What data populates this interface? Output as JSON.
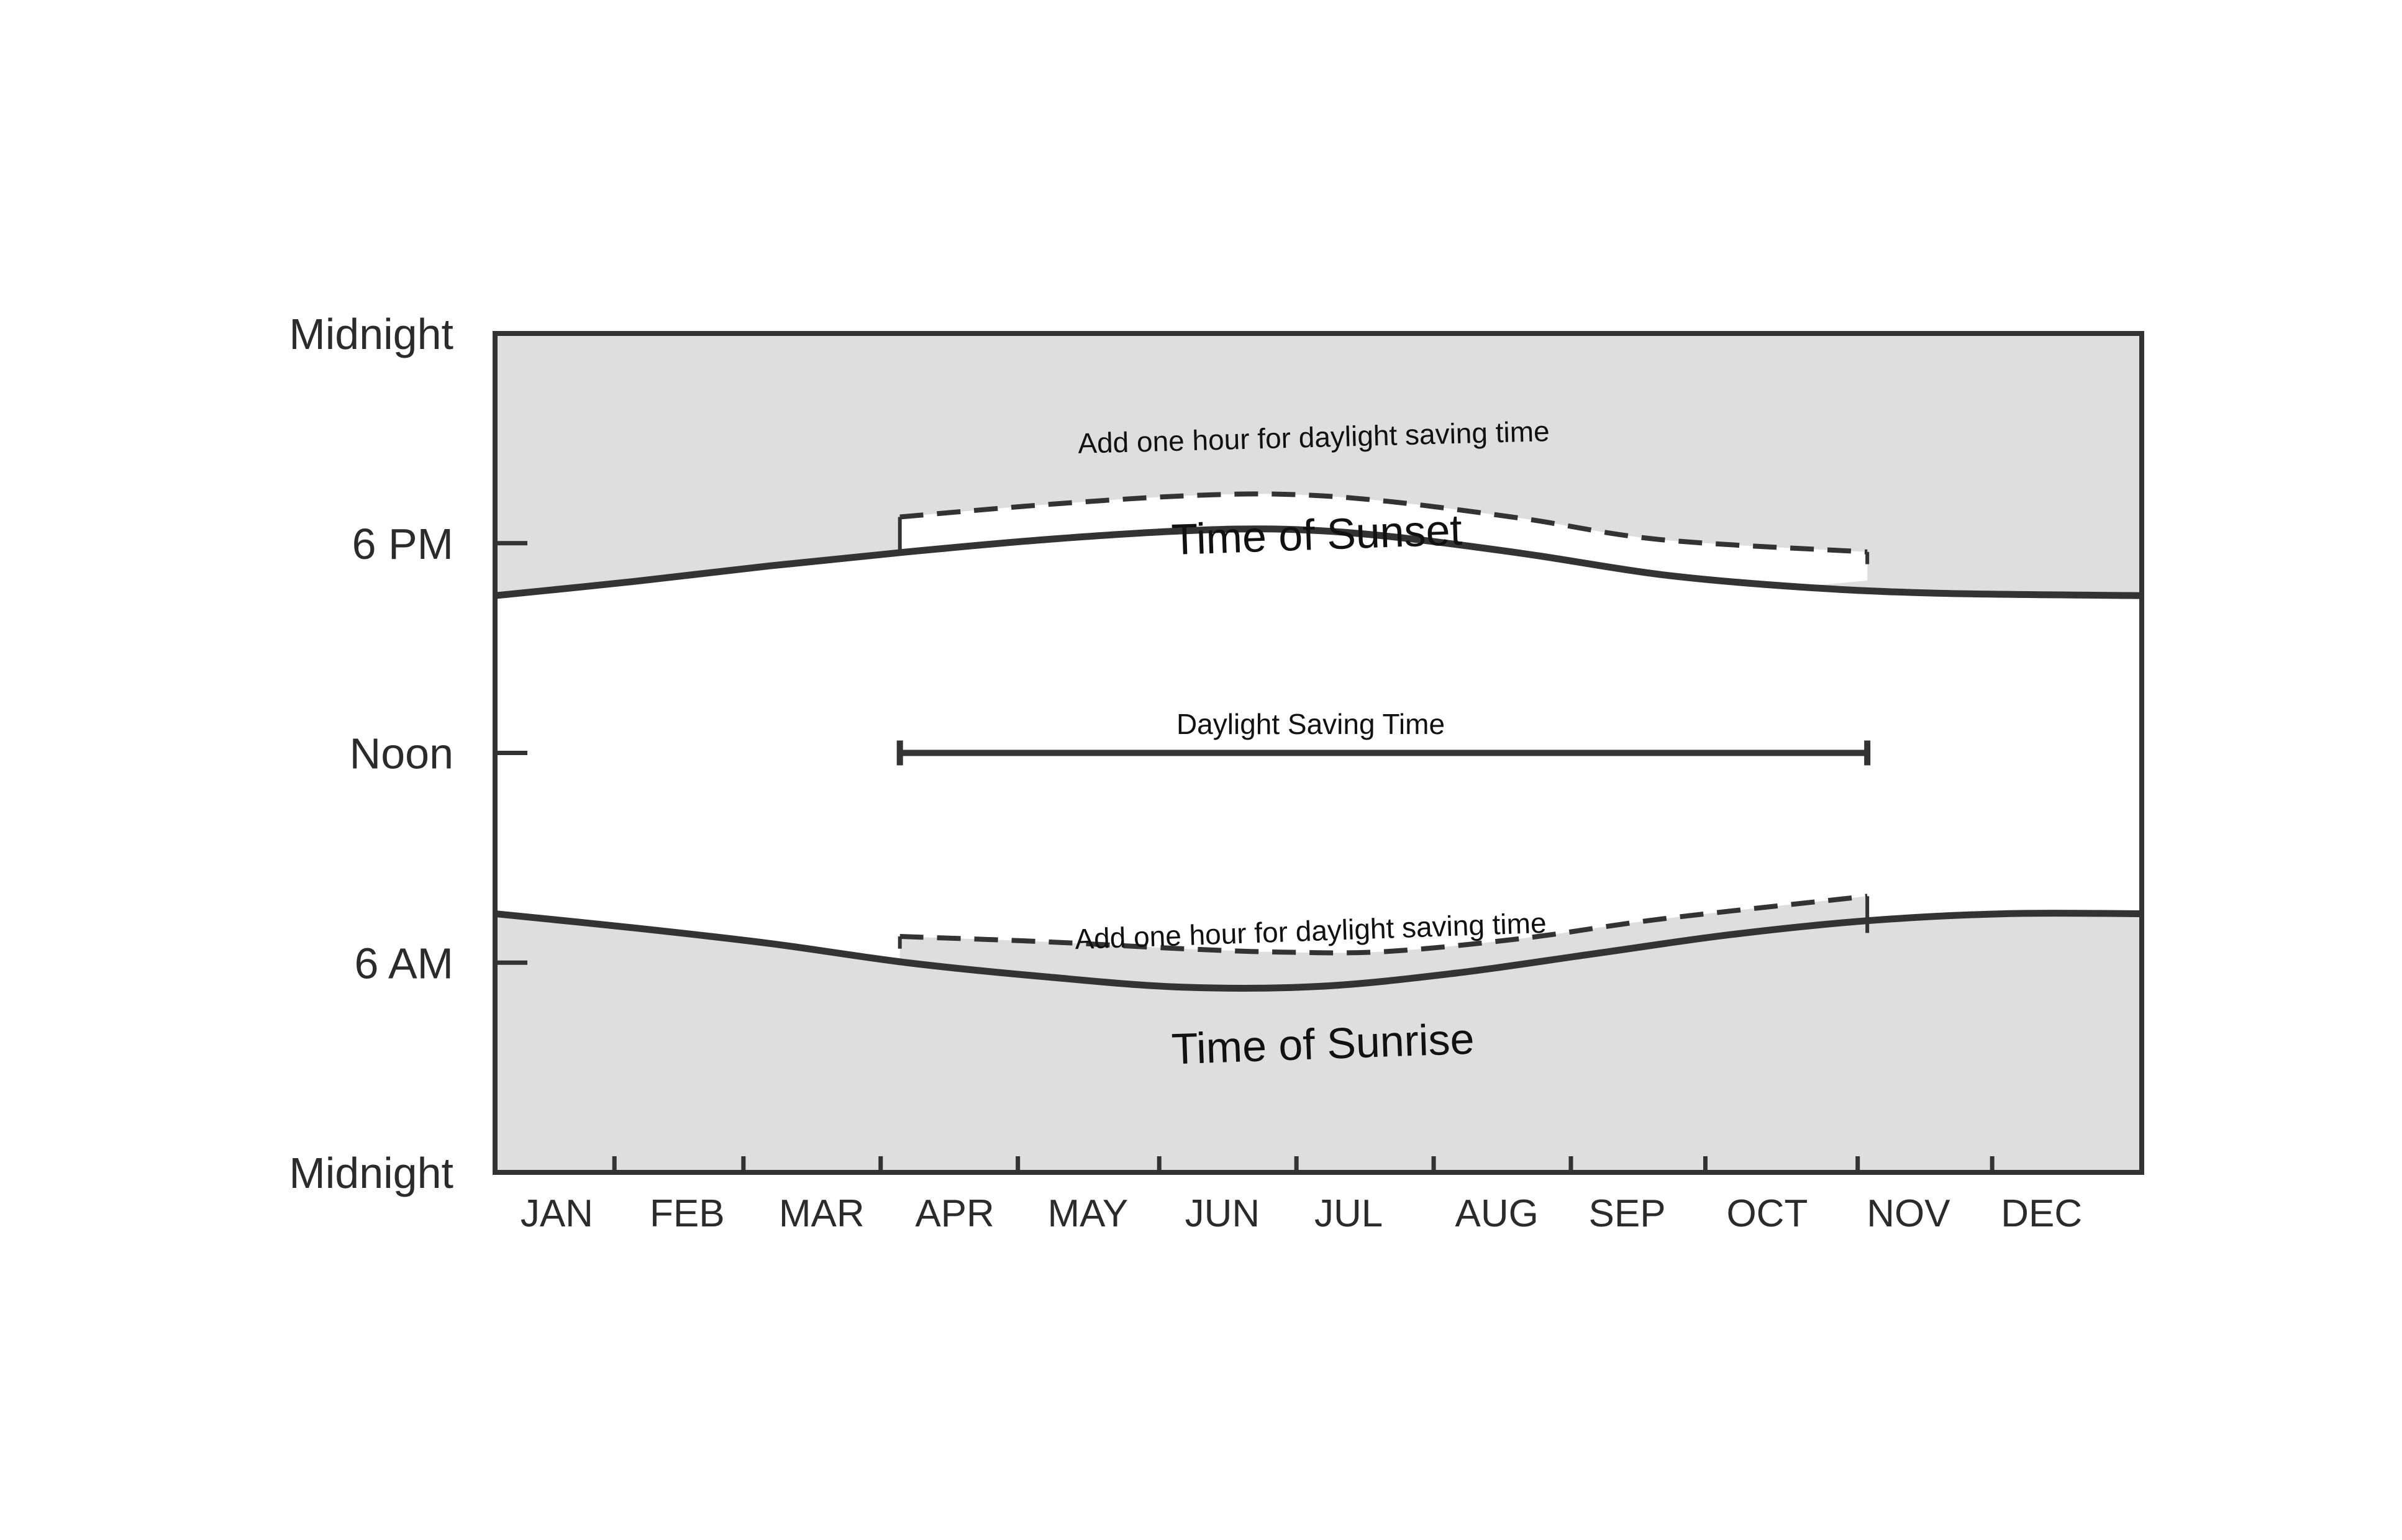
{
  "chart_data": {
    "type": "area",
    "y_axis": {
      "ticks": [
        "Midnight",
        "6 PM",
        "Noon",
        "6 AM",
        "Midnight"
      ],
      "tick_hours": [
        24,
        18,
        12,
        6,
        0
      ],
      "range_hours": [
        0,
        24
      ]
    },
    "x_axis": {
      "months": [
        "JAN",
        "FEB",
        "MAR",
        "APR",
        "MAY",
        "JUN",
        "JUL",
        "AUG",
        "SEP",
        "OCT",
        "NOV",
        "DEC"
      ],
      "range_months": [
        0,
        12
      ]
    },
    "sunset": {
      "label": "Time  of Sunset",
      "x_months": [
        0,
        1,
        2,
        3,
        4,
        5,
        5.75,
        6.5,
        7.5,
        8.5,
        9.5,
        10.5,
        12
      ],
      "hours": [
        16.5,
        16.9,
        17.35,
        17.75,
        18.1,
        18.35,
        18.4,
        18.2,
        17.7,
        17.1,
        16.75,
        16.57,
        16.5
      ]
    },
    "sunrise": {
      "label": "Time  of Sunrise",
      "x_months": [
        0,
        1,
        2,
        3,
        4,
        5,
        6,
        7,
        8,
        9,
        10,
        11,
        12
      ],
      "hours": [
        7.4,
        7.0,
        6.55,
        6.0,
        5.6,
        5.3,
        5.32,
        5.7,
        6.25,
        6.8,
        7.2,
        7.4,
        7.4
      ]
    },
    "daylight_saving": {
      "label": "Daylight Saving Time",
      "start_month": 2.95,
      "end_month": 10.0,
      "sunset_dst_hours": [
        18.75,
        19.1,
        19.35,
        19.4,
        19.2,
        18.7,
        18.1,
        17.75
      ],
      "sunrise_dst_hours": [
        6.75,
        6.6,
        6.4,
        6.3,
        6.32,
        6.7,
        7.25,
        7.9
      ],
      "dst_x_months": [
        2.95,
        4,
        5,
        5.75,
        6.5,
        7.5,
        8.5,
        10.0
      ],
      "sunset_note": "Add one hour for daylight saving time",
      "sunrise_note": "Add one hour for daylight saving time"
    },
    "colors": {
      "night_fill": "#dedede",
      "curve": "#333333",
      "frame": "#333333"
    },
    "grid": false,
    "legend": "none"
  }
}
